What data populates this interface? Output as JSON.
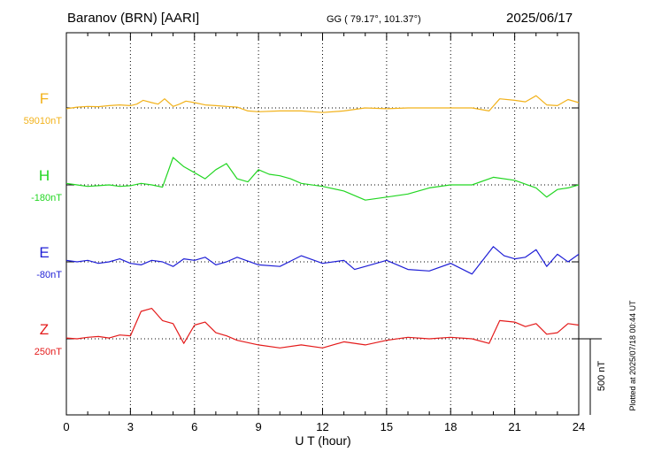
{
  "header": {
    "station": "Baranov (BRN)  [AARI]",
    "coords": "GG ( 79.17°, 101.37°)",
    "date": "2025/06/17"
  },
  "footer": {
    "plotted": "Plotted at 2025/07/18 00:44 UT"
  },
  "chart_data": {
    "type": "line",
    "title": "Baranov (BRN)  [AARI]",
    "xlabel": "U T (hour)",
    "ylabel": "",
    "xlim": [
      0,
      24
    ],
    "x_ticks": [
      0,
      3,
      6,
      9,
      12,
      15,
      18,
      21,
      24
    ],
    "x_tick_labels": [
      "0",
      "3",
      "6",
      "9",
      "12",
      "15",
      "18",
      "21",
      "24"
    ],
    "grid": true,
    "scale_bar_label": "500 nT",
    "colors": {
      "F": "#f2b21b",
      "H": "#22d622",
      "E": "#1f1fd6",
      "Z": "#e41b1b"
    },
    "series": [
      {
        "name": "F",
        "baseline_label": "59010nT",
        "x": [
          0,
          0.5,
          1,
          1.5,
          2,
          2.5,
          3,
          3.3,
          3.6,
          4,
          4.3,
          4.6,
          5,
          5.3,
          5.6,
          6,
          6.5,
          7,
          7.5,
          8,
          8.5,
          9,
          10,
          11,
          12,
          13,
          14,
          15,
          16,
          17,
          18,
          19,
          19.8,
          20.3,
          21,
          21.5,
          22,
          22.5,
          23,
          23.5,
          24
        ],
        "values": [
          -5,
          5,
          10,
          8,
          15,
          20,
          15,
          25,
          50,
          35,
          25,
          60,
          10,
          25,
          45,
          35,
          20,
          15,
          10,
          5,
          -20,
          -25,
          -20,
          -20,
          -30,
          -20,
          0,
          -5,
          0,
          0,
          0,
          0,
          -20,
          60,
          50,
          40,
          80,
          20,
          15,
          55,
          35
        ]
      },
      {
        "name": "H",
        "baseline_label": "-180nT",
        "x": [
          0,
          0.5,
          1,
          1.5,
          2,
          2.5,
          3,
          3.5,
          4,
          4.5,
          5,
          5.5,
          6,
          6.5,
          7,
          7.5,
          8,
          8.5,
          9,
          9.5,
          10,
          10.5,
          11,
          12,
          13,
          14,
          15,
          16,
          17,
          18,
          19,
          20,
          21,
          22,
          22.5,
          23,
          23.5,
          24
        ],
        "values": [
          10,
          0,
          -10,
          -5,
          0,
          -10,
          -5,
          10,
          0,
          -15,
          180,
          120,
          80,
          40,
          100,
          140,
          40,
          20,
          100,
          70,
          60,
          40,
          10,
          -10,
          -40,
          -100,
          -80,
          -60,
          -20,
          0,
          0,
          50,
          30,
          -20,
          -80,
          -30,
          -20,
          0
        ]
      },
      {
        "name": "E",
        "baseline_label": "-80nT",
        "x": [
          0,
          0.5,
          1,
          1.5,
          2,
          2.5,
          3,
          3.5,
          4,
          4.5,
          5,
          5.5,
          6,
          6.5,
          7,
          7.5,
          8,
          9,
          10,
          11,
          12,
          13,
          13.5,
          14,
          15,
          16,
          17,
          18,
          19,
          20,
          20.5,
          21,
          21.5,
          22,
          22.5,
          23,
          23.5,
          24
        ],
        "values": [
          10,
          0,
          10,
          -10,
          0,
          20,
          -10,
          -20,
          10,
          0,
          -30,
          20,
          10,
          30,
          -20,
          0,
          30,
          -20,
          -30,
          40,
          -10,
          10,
          -50,
          -30,
          10,
          -50,
          -60,
          -10,
          -80,
          100,
          40,
          20,
          30,
          80,
          -30,
          50,
          0,
          50
        ]
      },
      {
        "name": "Z",
        "baseline_label": "250nT",
        "x": [
          0,
          0.5,
          1,
          1.5,
          2,
          2.5,
          3,
          3.5,
          4,
          4.5,
          5,
          5.5,
          6,
          6.5,
          7,
          7.5,
          8,
          9,
          10,
          11,
          12,
          13,
          14,
          15,
          16,
          17,
          18,
          19,
          19.8,
          20.3,
          21,
          21.5,
          22,
          22.5,
          23,
          23.5,
          24
        ],
        "values": [
          5,
          0,
          10,
          15,
          5,
          25,
          20,
          180,
          200,
          120,
          100,
          -30,
          90,
          110,
          40,
          20,
          -10,
          -40,
          -60,
          -40,
          -60,
          -20,
          -40,
          -10,
          10,
          0,
          10,
          0,
          -30,
          120,
          110,
          80,
          100,
          30,
          40,
          100,
          90
        ]
      }
    ]
  }
}
